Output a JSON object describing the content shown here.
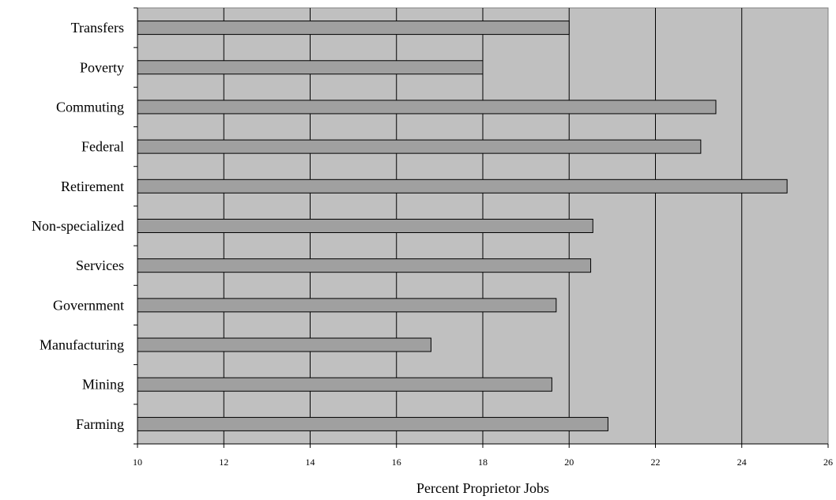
{
  "chart_data": {
    "type": "bar",
    "orientation": "horizontal",
    "categories": [
      "Transfers",
      "Poverty",
      "Commuting",
      "Federal",
      "Retirement",
      "Non-specialized",
      "Services",
      "Government",
      "Manufacturing",
      "Mining",
      "Farming"
    ],
    "values": [
      20.0,
      18.0,
      23.4,
      23.05,
      25.05,
      20.55,
      20.5,
      19.7,
      16.8,
      19.6,
      20.9
    ],
    "xlabel": "Percent Proprietor Jobs",
    "ylabel": "",
    "xlim": [
      10,
      26
    ],
    "xticks": [
      "10",
      "12",
      "14",
      "16",
      "18",
      "20",
      "22",
      "24",
      "26"
    ],
    "grid": "vertical",
    "colors": {
      "plot_background": "#c0c0c0",
      "bar_fill": "#a0a0a0",
      "bar_stroke": "#000000",
      "gridline": "#000000"
    }
  }
}
